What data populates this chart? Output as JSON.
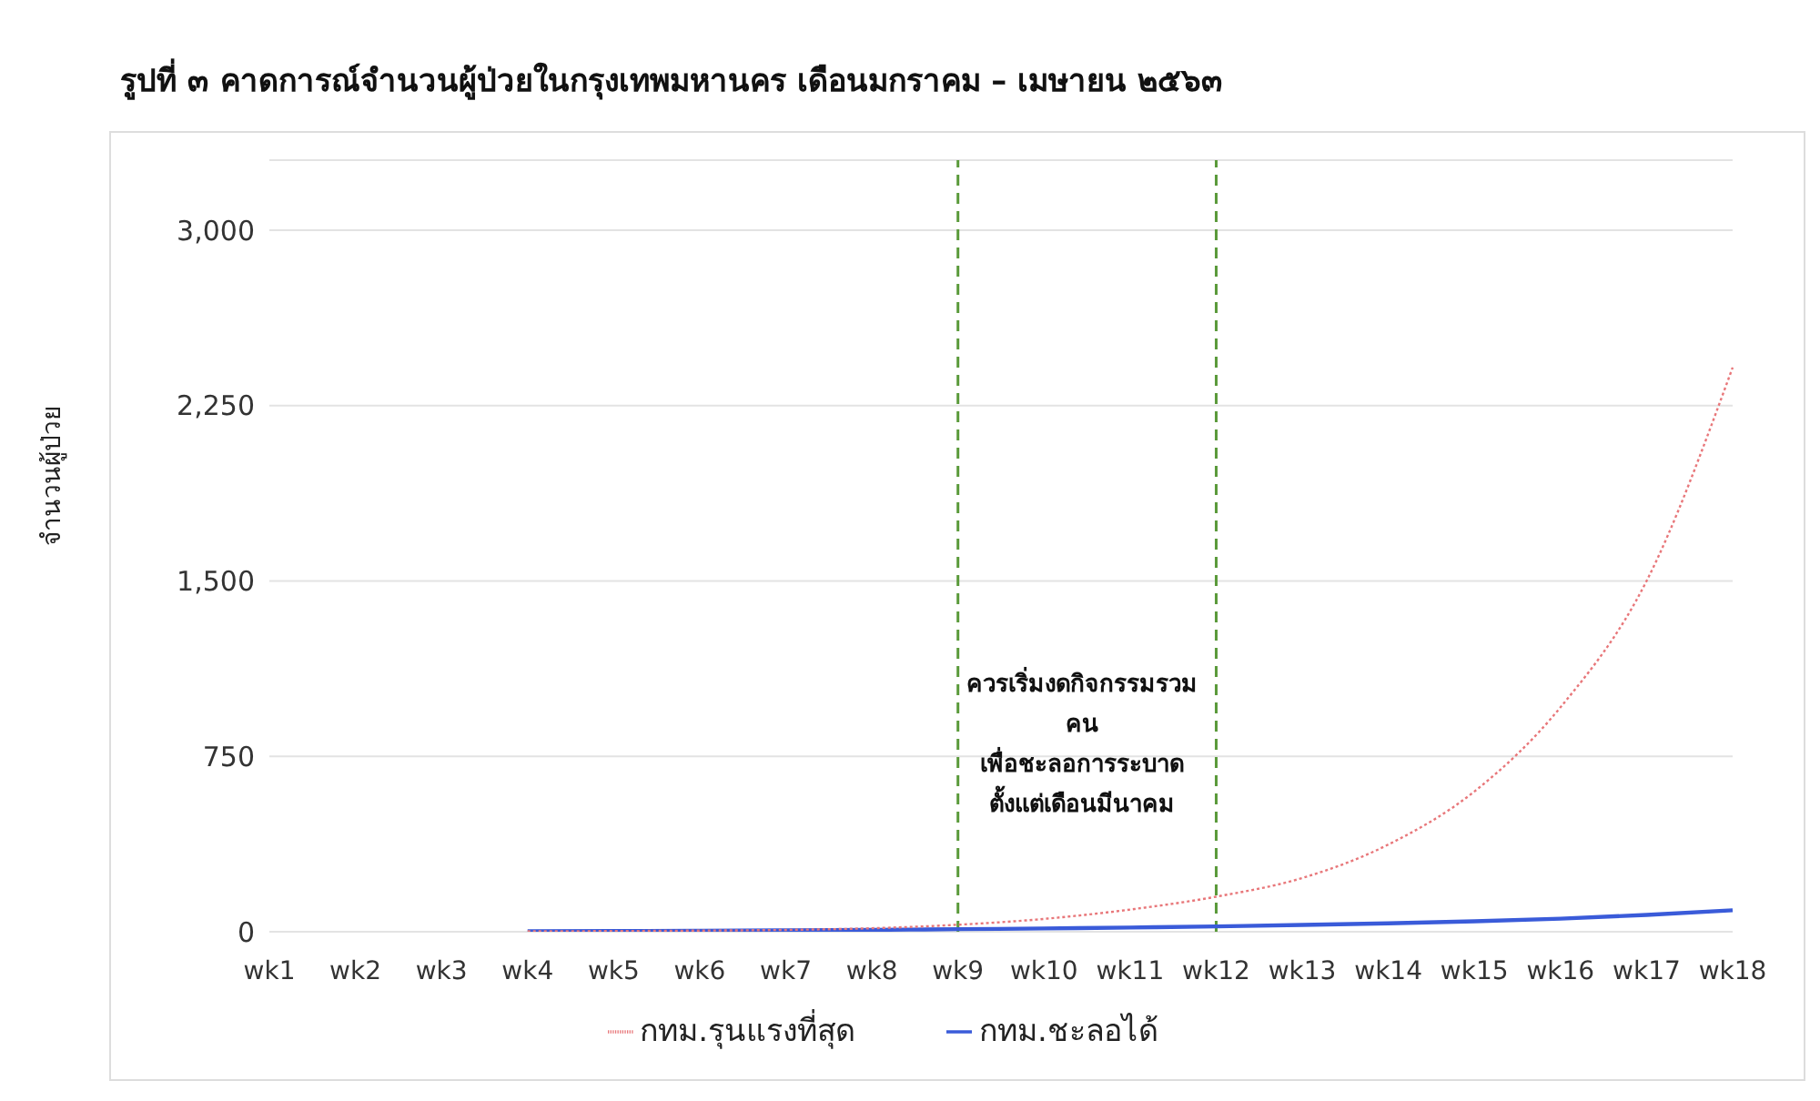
{
  "chart_data": {
    "type": "line",
    "title": "รูปที่ ๓ คาดการณ์จำนวนผู้ป่วยในกรุงเทพมหานคร เดือนมกราคม – เมษายน ๒๕๖๓",
    "ylabel": "จำนวนผู้ป่วย",
    "categories": [
      "wk1",
      "wk2",
      "wk3",
      "wk4",
      "wk5",
      "wk6",
      "wk7",
      "wk8",
      "wk9",
      "wk10",
      "wk11",
      "wk12",
      "wk13",
      "wk14",
      "wk15",
      "wk16",
      "wk17",
      "wk18"
    ],
    "series": [
      {
        "name": "กทม.รุนแรงที่สุด",
        "color": "#e8777a",
        "line_style": "dotted",
        "values": [
          null,
          null,
          null,
          2,
          3,
          5,
          8,
          15,
          30,
          55,
          95,
          150,
          230,
          373,
          600,
          960,
          1500,
          2413
        ]
      },
      {
        "name": "กทม.ชะลอได้",
        "color": "#3a5bd9",
        "line_style": "solid",
        "values": [
          null,
          null,
          null,
          2,
          3,
          4,
          6,
          8,
          11,
          14,
          18,
          23,
          29,
          36,
          45,
          56,
          72,
          92
        ]
      }
    ],
    "ylim": [
      0,
      3300
    ],
    "yticks": [
      0,
      750,
      {
        "value": 1500,
        "label": "1,500"
      },
      {
        "value": 2250,
        "label": "2,250"
      },
      {
        "value": 3000,
        "label": "3,000"
      }
    ],
    "grid": "y",
    "legend": "bottom",
    "marker": "none",
    "ref_lines": [
      {
        "axis": "x",
        "value": "wk9",
        "color": "#5a9a3a",
        "line_style": "dashed"
      },
      {
        "axis": "x",
        "value": "wk12",
        "color": "#5a9a3a",
        "line_style": "dashed"
      }
    ],
    "annotations": [
      "ควรเริ่มงดกิจกรรมรวม\nคน\nเพื่อชะลอการระบาด\nตั้งแต่เดือนมีนาคม"
    ]
  }
}
